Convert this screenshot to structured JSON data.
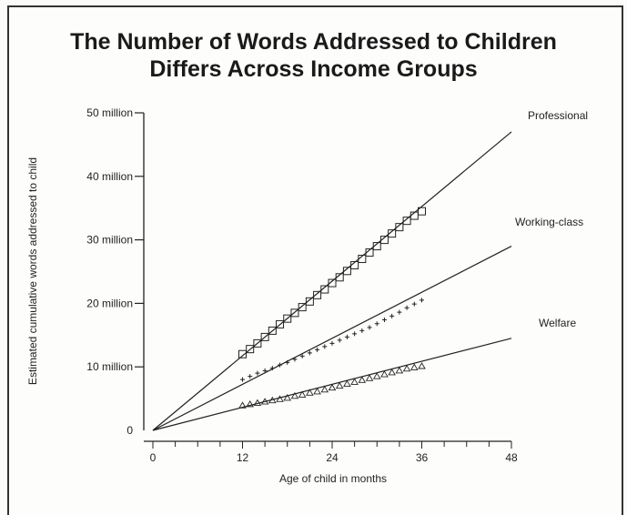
{
  "chart_data": {
    "type": "line",
    "title_line1": "The Number of Words Addressed to Children",
    "title_line2": "Differs Across Income Groups",
    "xlabel": "Age of child in months",
    "ylabel": "Estimated cumulative words addressed to child",
    "xlim": [
      0,
      48
    ],
    "ylim": [
      0,
      50000000
    ],
    "x_ticks": [
      0,
      12,
      24,
      36,
      48
    ],
    "x_tick_labels": [
      "0",
      "12",
      "24",
      "36",
      "48"
    ],
    "y_ticks": [
      10000000,
      20000000,
      30000000,
      40000000,
      50000000
    ],
    "y_tick_labels": [
      "10 million",
      "20 million",
      "30 million",
      "40 million",
      "50 million"
    ],
    "origin_label": "0",
    "series": [
      {
        "name": "Professional",
        "marker": "square",
        "trend": [
          [
            0,
            0
          ],
          [
            48,
            47000000
          ]
        ],
        "x": [
          12,
          13,
          14,
          15,
          16,
          17,
          18,
          19,
          20,
          21,
          22,
          23,
          24,
          25,
          26,
          27,
          28,
          29,
          30,
          31,
          32,
          33,
          34,
          35,
          36
        ],
        "y": [
          12000000,
          12800000,
          13700000,
          14700000,
          15700000,
          16700000,
          17600000,
          18500000,
          19400000,
          20300000,
          21300000,
          22200000,
          23200000,
          24100000,
          25100000,
          26000000,
          27000000,
          28000000,
          29000000,
          30000000,
          31000000,
          32000000,
          33000000,
          33800000,
          34500000
        ]
      },
      {
        "name": "Working-class",
        "marker": "plus",
        "trend": [
          [
            0,
            0
          ],
          [
            48,
            29000000
          ]
        ],
        "x": [
          12,
          13,
          14,
          15,
          16,
          17,
          18,
          19,
          20,
          21,
          22,
          23,
          24,
          25,
          26,
          27,
          28,
          29,
          30,
          31,
          32,
          33,
          34,
          35,
          36
        ],
        "y": [
          8000000,
          8500000,
          9000000,
          9400000,
          9800000,
          10300000,
          10700000,
          11200000,
          11700000,
          12200000,
          12700000,
          13200000,
          13700000,
          14200000,
          14700000,
          15200000,
          15700000,
          16200000,
          16800000,
          17400000,
          18000000,
          18600000,
          19300000,
          19900000,
          20500000
        ]
      },
      {
        "name": "Welfare",
        "marker": "triangle",
        "trend": [
          [
            0,
            0
          ],
          [
            48,
            14500000
          ]
        ],
        "x": [
          12,
          13,
          14,
          15,
          16,
          17,
          18,
          19,
          20,
          21,
          22,
          23,
          24,
          25,
          26,
          27,
          28,
          29,
          30,
          31,
          32,
          33,
          34,
          35,
          36
        ],
        "y": [
          3900000,
          4100000,
          4300000,
          4500000,
          4700000,
          4900000,
          5100000,
          5400000,
          5600000,
          5900000,
          6100000,
          6400000,
          6700000,
          7000000,
          7300000,
          7600000,
          7900000,
          8200000,
          8500000,
          8800000,
          9100000,
          9400000,
          9700000,
          9900000,
          10100000
        ]
      }
    ],
    "colors": {
      "ink": "#222222",
      "paper": "#fdfdfb"
    }
  }
}
